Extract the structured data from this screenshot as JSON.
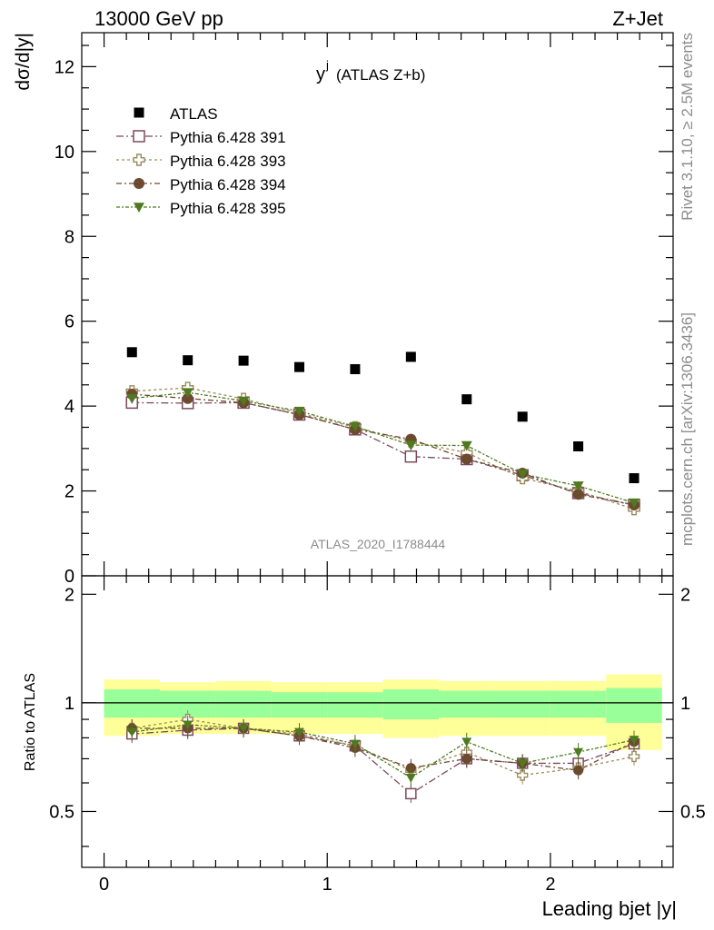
{
  "header": {
    "left": "13000 GeV pp",
    "right": "Z+Jet"
  },
  "side_text": {
    "rivet": "Rivet 3.1.10, ≥ 2.5M events",
    "mcplots": "mcplots.cern.ch [arXiv:1306.3436]"
  },
  "watermark": "ATLAS_2020_I1788444",
  "colors": {
    "atlas": "#000000",
    "p391": "#7b4a5e",
    "p393": "#9c8a5c",
    "p394": "#6b4a2e",
    "p395": "#4f7a1f",
    "band_inner": "#99ff99",
    "band_outer": "#ffff99"
  },
  "chart_data": [
    {
      "type": "scatter",
      "title_main": "y",
      "title_sup": "j",
      "title_rest": "(ATLAS Z+b)",
      "ylabel": "dσ/d|y|",
      "xlim": [
        -0.1,
        2.55
      ],
      "ylim": [
        0,
        12.8
      ],
      "yticks": [
        0,
        2,
        4,
        6,
        8,
        10,
        12
      ],
      "ytick_labels": [
        "0",
        "2",
        "4",
        "6",
        "8",
        "10",
        "12"
      ],
      "x": [
        0.125,
        0.375,
        0.625,
        0.875,
        1.125,
        1.375,
        1.625,
        1.875,
        2.125,
        2.375
      ],
      "series": [
        {
          "name": "ATLAS",
          "key": "atlas",
          "marker": "square",
          "values": [
            5.27,
            5.08,
            5.07,
            4.92,
            4.87,
            5.16,
            4.16,
            3.75,
            3.05,
            2.3
          ]
        },
        {
          "name": "Pythia 6.428 391",
          "key": "p391",
          "marker": "open-square",
          "values": [
            4.08,
            4.07,
            4.08,
            3.8,
            3.45,
            2.81,
            2.75,
            2.37,
            1.95,
            1.67
          ]
        },
        {
          "name": "Pythia 6.428 393",
          "key": "p393",
          "marker": "open-cross",
          "values": [
            4.35,
            4.43,
            4.17,
            3.83,
            3.5,
            3.17,
            2.9,
            2.3,
            2.0,
            1.57
          ]
        },
        {
          "name": "Pythia 6.428 394",
          "key": "p394",
          "marker": "circle",
          "values": [
            4.28,
            4.18,
            4.08,
            3.8,
            3.45,
            3.22,
            2.75,
            2.42,
            1.92,
            1.67
          ]
        },
        {
          "name": "Pythia 6.428 395",
          "key": "p395",
          "marker": "triangle-down",
          "values": [
            4.18,
            4.32,
            4.12,
            3.88,
            3.52,
            3.08,
            3.07,
            2.4,
            2.12,
            1.72
          ]
        }
      ],
      "legend_position": "top-left"
    },
    {
      "type": "scatter",
      "ylabel": "Ratio to ATLAS",
      "xlabel": "Leading bjet |y|",
      "xlim": [
        -0.1,
        2.55
      ],
      "ylim": [
        0.35,
        2.25
      ],
      "xticks": [
        0,
        1,
        2
      ],
      "xtick_labels": [
        "0",
        "1",
        "2"
      ],
      "yticks": [
        0.5,
        1,
        2
      ],
      "ytick_labels": [
        "0.5",
        "1",
        "2"
      ],
      "bins": [
        0,
        0.25,
        0.5,
        0.75,
        1.0,
        1.25,
        1.5,
        1.75,
        2.0,
        2.25,
        2.5
      ],
      "band_inner": [
        [
          0.91,
          1.09
        ],
        [
          0.91,
          1.08
        ],
        [
          0.91,
          1.08
        ],
        [
          0.91,
          1.07
        ],
        [
          0.91,
          1.07
        ],
        [
          0.9,
          1.09
        ],
        [
          0.91,
          1.08
        ],
        [
          0.91,
          1.08
        ],
        [
          0.91,
          1.08
        ],
        [
          0.88,
          1.1
        ]
      ],
      "band_outer": [
        [
          0.81,
          1.16
        ],
        [
          0.82,
          1.14
        ],
        [
          0.82,
          1.15
        ],
        [
          0.82,
          1.14
        ],
        [
          0.82,
          1.14
        ],
        [
          0.8,
          1.16
        ],
        [
          0.81,
          1.15
        ],
        [
          0.81,
          1.15
        ],
        [
          0.81,
          1.15
        ],
        [
          0.74,
          1.2
        ]
      ],
      "series": [
        {
          "key": "p391",
          "marker": "open-square",
          "values": [
            0.82,
            0.84,
            0.85,
            0.81,
            0.76,
            0.56,
            0.7,
            0.68,
            0.68,
            0.77
          ]
        },
        {
          "key": "p393",
          "marker": "open-cross",
          "values": [
            0.85,
            0.9,
            0.85,
            0.82,
            0.76,
            0.65,
            0.73,
            0.63,
            0.66,
            0.71
          ]
        },
        {
          "key": "p394",
          "marker": "circle",
          "values": [
            0.85,
            0.85,
            0.85,
            0.81,
            0.75,
            0.66,
            0.7,
            0.68,
            0.65,
            0.78
          ]
        },
        {
          "key": "p395",
          "marker": "triangle-down",
          "values": [
            0.83,
            0.87,
            0.85,
            0.83,
            0.77,
            0.62,
            0.78,
            0.68,
            0.73,
            0.79
          ]
        }
      ]
    }
  ]
}
